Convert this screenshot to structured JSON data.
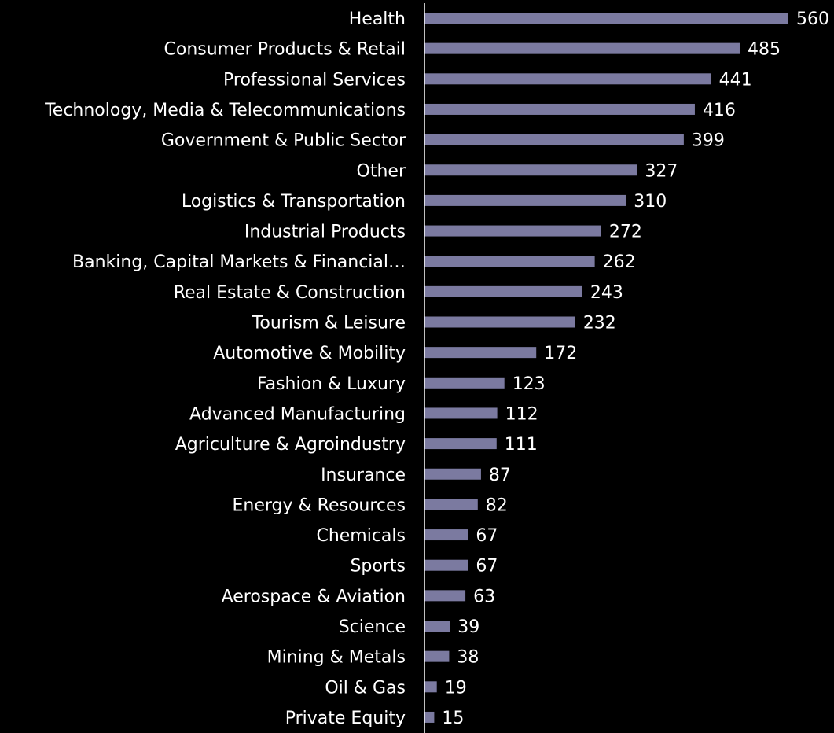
{
  "chart_data": {
    "type": "bar",
    "orientation": "horizontal",
    "categories": [
      "Health",
      "Consumer Products & Retail",
      "Professional Services",
      "Technology, Media & Telecommunications",
      "Government & Public Sector",
      "Other",
      "Logistics & Transportation",
      "Industrial Products",
      "Banking, Capital Markets & Financial…",
      "Real Estate & Construction",
      "Tourism & Leisure",
      "Automotive & Mobility",
      "Fashion & Luxury",
      "Advanced Manufacturing",
      "Agriculture & Agroindustry",
      "Insurance",
      "Energy & Resources",
      "Chemicals",
      "Sports",
      "Aerospace & Aviation",
      "Science",
      "Mining & Metals",
      "Oil & Gas",
      "Private Equity"
    ],
    "values": [
      560,
      485,
      441,
      416,
      399,
      327,
      310,
      272,
      262,
      243,
      232,
      172,
      123,
      112,
      111,
      87,
      82,
      67,
      67,
      63,
      39,
      38,
      19,
      15
    ],
    "data_labels": true,
    "xlim": [
      0,
      560
    ],
    "grid": false,
    "legend": "none",
    "title": "",
    "xlabel": "",
    "ylabel": ""
  },
  "colors": {
    "background": "#000000",
    "bar": "#7b7aa0",
    "text": "#ffffff",
    "axis": "#ffffff"
  }
}
